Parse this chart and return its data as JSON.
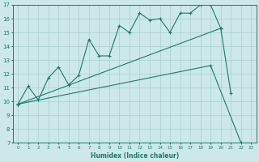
{
  "xlabel": "Humidex (Indice chaleur)",
  "xlim": [
    -0.5,
    23.5
  ],
  "ylim": [
    7,
    17
  ],
  "yticks": [
    7,
    8,
    9,
    10,
    11,
    12,
    13,
    14,
    15,
    16,
    17
  ],
  "xticks": [
    0,
    1,
    2,
    3,
    4,
    5,
    6,
    7,
    8,
    9,
    10,
    11,
    12,
    13,
    14,
    15,
    16,
    17,
    18,
    19,
    20,
    21,
    22,
    23
  ],
  "bg_color": "#cce8e8",
  "line_color": "#1a7a6e",
  "grid_color": "#aacece",
  "line1_x": [
    0,
    1,
    2,
    3,
    4,
    5,
    6,
    7,
    8,
    9,
    10,
    11,
    12,
    13,
    14,
    15,
    16,
    17,
    18,
    19,
    20,
    21
  ],
  "line1_y": [
    9.8,
    11.1,
    10.1,
    11.7,
    12.5,
    11.2,
    11.9,
    14.5,
    13.3,
    13.3,
    15.5,
    15.0,
    16.4,
    15.9,
    16.0,
    15.0,
    16.4,
    16.4,
    17.0,
    17.0,
    15.3,
    10.6
  ],
  "line2_x": [
    0,
    19,
    22
  ],
  "line2_y": [
    9.8,
    12.6,
    7.0
  ],
  "line3_x": [
    0,
    20
  ],
  "line3_y": [
    9.8,
    15.3
  ]
}
